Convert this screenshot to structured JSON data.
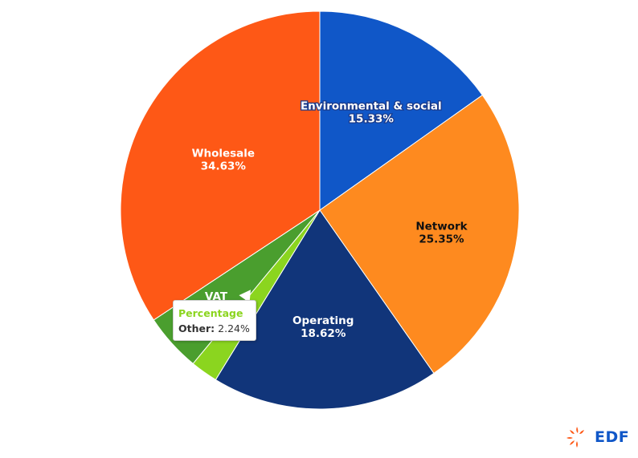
{
  "chart_data": {
    "type": "pie",
    "slices": [
      {
        "label": "Environmental & social",
        "value": 15.33,
        "value_text": "15.33%",
        "color": "#1057c8",
        "label_color": "#ffffff",
        "label_outline": "#1a3a8a"
      },
      {
        "label": "Network",
        "value": 25.35,
        "value_text": "25.35%",
        "color": "#fe8a1f",
        "label_color": "#111111",
        "label_outline": ""
      },
      {
        "label": "Operating",
        "value": 18.62,
        "value_text": "18.62%",
        "color": "#11357a",
        "label_color": "#ffffff",
        "label_outline": ""
      },
      {
        "label": "Other",
        "value": 2.24,
        "value_text": "",
        "color": "#8bd51f",
        "label_color": "",
        "label_outline": ""
      },
      {
        "label": "VAT",
        "value": 4.76,
        "value_text": "4.76%",
        "color": "#4a9e2e",
        "label_color": "#ffffff",
        "label_outline": ""
      },
      {
        "label": "Wholesale",
        "value": 34.63,
        "value_text": "34.63%",
        "color": "#fe5816",
        "label_color": "#ffffff",
        "label_outline": ""
      }
    ],
    "start_angle_deg": 0,
    "direction": "clockwise"
  },
  "tooltip": {
    "title": "Percentage",
    "key": "Other:",
    "value": "2.24%"
  },
  "logo": {
    "text": "EDF",
    "icon": "edf-sun-icon",
    "colors": {
      "icon": "#fe5816",
      "text": "#1057c8"
    }
  }
}
